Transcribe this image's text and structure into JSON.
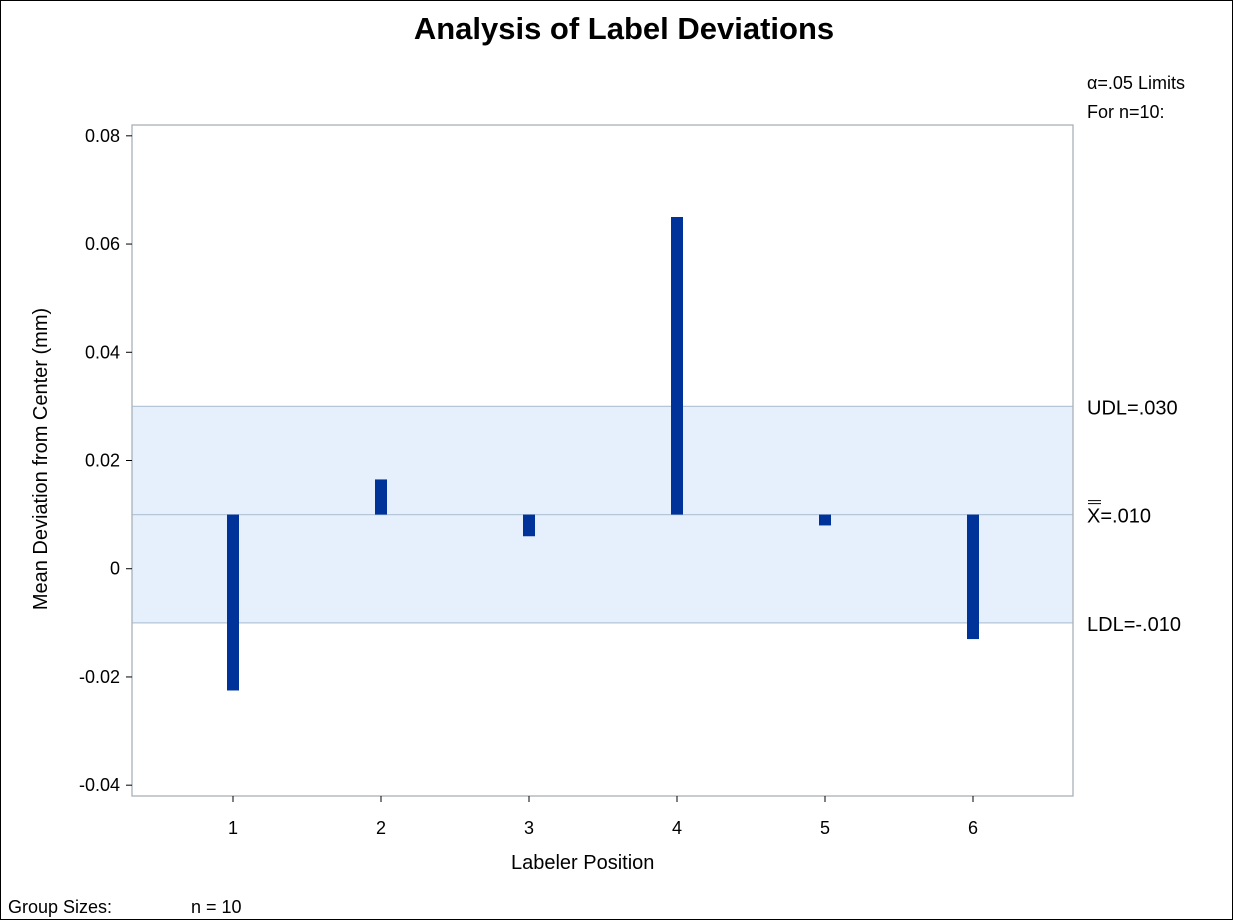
{
  "chart_data": {
    "type": "bar",
    "title": "Analysis of Label Deviations",
    "xlabel": "Labeler Position",
    "ylabel": "Mean Deviation from Center (mm)",
    "categories": [
      "1",
      "2",
      "3",
      "4",
      "5",
      "6"
    ],
    "values": [
      -0.0225,
      0.0165,
      0.006,
      0.065,
      0.008,
      -0.013
    ],
    "baseline": 0.01,
    "ylim": [
      -0.042,
      0.082
    ],
    "yticks": [
      0.08,
      0.06,
      0.04,
      0.02,
      0,
      -0.02,
      -0.04
    ],
    "ytick_labels": [
      "0.08",
      "0.06",
      "0.04",
      "0.02",
      "0",
      "-0.02",
      "-0.04"
    ],
    "limits": {
      "upper": 0.03,
      "center": 0.01,
      "lower": -0.01
    },
    "limit_labels": {
      "header_line1": "α=.05 Limits",
      "header_line2": "For n=10:",
      "upper": "UDL=.030",
      "center_symbol": "X",
      "center_value": "=.010",
      "lower": "LDL=-.010"
    },
    "group_sizes": {
      "label": "Group Sizes:",
      "value": "n = 10"
    },
    "colors": {
      "bar": "#003399",
      "decision_band": "#e6f0fd",
      "limit_line": "#b4c6d8",
      "frame": "#a9b0b8"
    },
    "grid": false
  }
}
